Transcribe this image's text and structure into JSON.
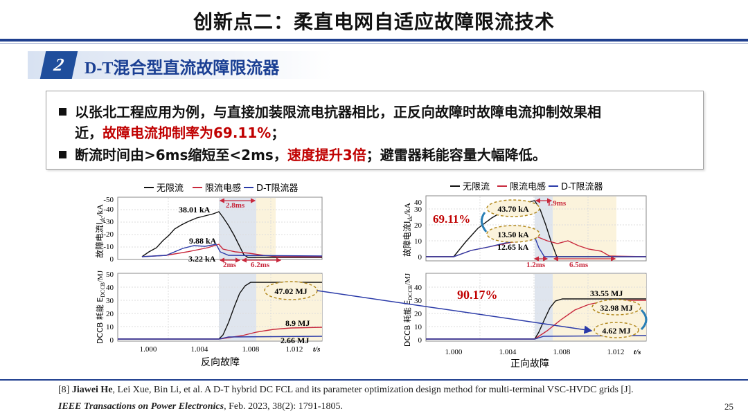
{
  "title": "创新点二：柔直电网自适应故障限流技术",
  "section": {
    "number": "2",
    "title": "D-T混合型直流故障限流器"
  },
  "bullets": {
    "b1_l1": "以张北工程应用为例，与直接加装限流电抗器相比，正反向故障时故障电流抑制效果相",
    "b1_l2a": "近，",
    "b1_l2b": "故障电流抑制率为69.11%",
    "b1_l2c": "；",
    "b2_a": "断流时间由>6ms缩短至<2ms，",
    "b2_b": "速度提升3倍",
    "b2_c": "；避雷器耗能容量大幅降低。"
  },
  "colors": {
    "accent": "#1f4e9c",
    "highlight": "#c00000",
    "series_black": "#111111",
    "series_red": "#c8283c",
    "series_blue": "#2a3aa8"
  },
  "legend": {
    "none": "无限流",
    "reactor": "限流电感",
    "dt": "D-T限流器"
  },
  "charts": {
    "left": {
      "caption": "反向故障",
      "y1_label": "故障电流I",
      "y1_sub": "dc",
      "y1_unit": "/kA",
      "y2_label": "DCCB 耗能 E",
      "y2_sub": "DCCB",
      "y2_unit": "/MJ",
      "y1_ticks": [
        "-50",
        "-40",
        "-30",
        "-20",
        "-10",
        "0"
      ],
      "y2_ticks": [
        "50",
        "40",
        "30",
        "20",
        "10",
        "0"
      ],
      "x_ticks": [
        "1.000",
        "1.004",
        "1.008",
        "1.012"
      ],
      "x_unit": "t/s",
      "peak_none": "38.01 kA",
      "peak_reactor": "9.88 kA",
      "peak_dt": "3.22 kA",
      "dt1": "2.8ms",
      "dt2": "2ms",
      "dt3": "6.2ms",
      "e_none": "47.02 MJ",
      "e_reactor": "8.9 MJ",
      "e_dt": "2.66 MJ"
    },
    "right": {
      "caption": "正向故障",
      "y1_label": "故障电流I",
      "y1_sub": "dc",
      "y1_unit": "/kA",
      "y2_label": "DCCB 耗能 E",
      "y2_sub": "DCCB",
      "y2_unit": "/MJ",
      "y1_ticks": [
        "40",
        "30",
        "20",
        "10",
        "0"
      ],
      "y2_ticks": [
        "40",
        "30",
        "20",
        "10",
        "0"
      ],
      "x_ticks": [
        "1.000",
        "1.004",
        "1.008",
        "1.012"
      ],
      "x_unit": "t/s",
      "rate1": "69.11%",
      "rate2": "90.17%",
      "peak_none": "43.70 kA",
      "peak_reactor": "13.50 kA",
      "peak_dt": "12.65 kA",
      "dt1": "1.9ms",
      "dt2": "1.2ms",
      "dt3": "6.5ms",
      "e_none": "33.55 MJ",
      "e_reactor": "32.98 MJ",
      "e_dt": "4.62 MJ"
    }
  },
  "reference": {
    "num": "[8] ",
    "authors_bold": "Jiawei He",
    "authors_rest": ", Lei Xue, Bin Li, et al. A D-T hybrid DC FCL and its parameter optimization design method for multi-terminal VSC-HVDC grids [J].",
    "journal": "IEEE Transactions on Power Electronics",
    "journal_rest": ", Feb. 2023, 38(2): 1791-1805."
  },
  "page_number": "25"
}
